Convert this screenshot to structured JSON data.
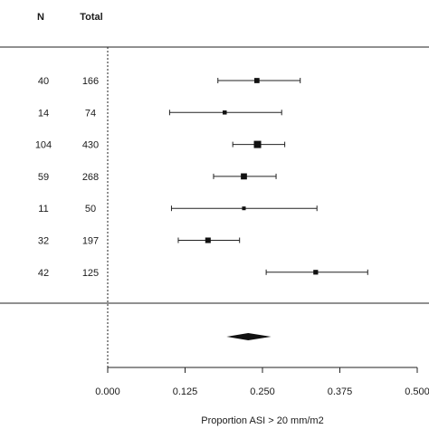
{
  "chart_data": {
    "type": "forest",
    "column_headers": {
      "n": "N",
      "total": "Total"
    },
    "rows": [
      {
        "n": "40",
        "total": "166",
        "estimate": 0.241,
        "ci": [
          0.178,
          0.311
        ]
      },
      {
        "n": "14",
        "total": "74",
        "estimate": 0.189,
        "ci": [
          0.1,
          0.281
        ]
      },
      {
        "n": "104",
        "total": "430",
        "estimate": 0.242,
        "ci": [
          0.202,
          0.286
        ]
      },
      {
        "n": "59",
        "total": "268",
        "estimate": 0.22,
        "ci": [
          0.171,
          0.272
        ]
      },
      {
        "n": "11",
        "total": "50",
        "estimate": 0.22,
        "ci": [
          0.103,
          0.338
        ]
      },
      {
        "n": "32",
        "total": "197",
        "estimate": 0.162,
        "ci": [
          0.114,
          0.213
        ]
      },
      {
        "n": "42",
        "total": "125",
        "estimate": 0.336,
        "ci": [
          0.256,
          0.42
        ]
      }
    ],
    "pooled": {
      "estimate": 0.227,
      "ci": [
        0.192,
        0.264
      ]
    },
    "reference_line": 0.0,
    "xlim": [
      0.0,
      0.5
    ],
    "xticks": [
      "0.000",
      "0.125",
      "0.250",
      "0.375",
      "0.500"
    ],
    "xlabel": "Proportion ASI > 20 mm/m2"
  }
}
